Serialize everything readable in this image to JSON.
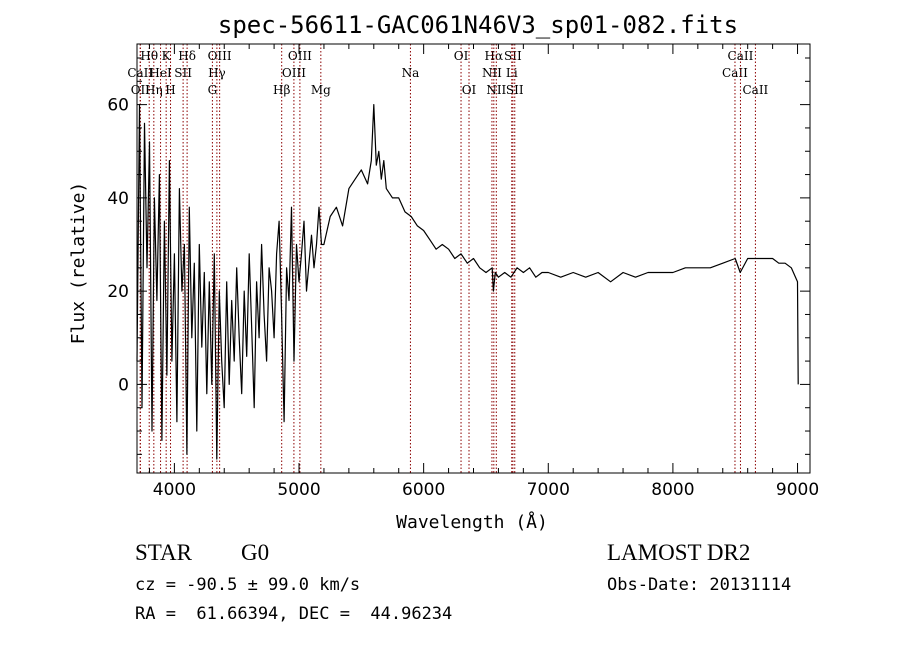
{
  "chart_data": {
    "type": "line",
    "title": "spec-56611-GAC061N46V3_sp01-082.fits",
    "xlabel": "Wavelength (Å)",
    "ylabel": "Flux (relative)",
    "xlim": [
      3700,
      9100
    ],
    "ylim": [
      -19,
      73
    ],
    "xticks": [
      4000,
      5000,
      6000,
      7000,
      8000,
      9000
    ],
    "yticks": [
      0,
      20,
      40,
      60
    ],
    "grid": false,
    "series_color": "#000000",
    "line_color": "#8b0000",
    "series": [
      {
        "x": [
          3700,
          3720,
          3740,
          3760,
          3780,
          3800,
          3820,
          3840,
          3860,
          3880,
          3900,
          3920,
          3940,
          3960,
          3980,
          4000,
          4020,
          4040,
          4060,
          4080,
          4100,
          4120,
          4140,
          4160,
          4180,
          4200,
          4220,
          4240,
          4260,
          4280,
          4300,
          4320,
          4340,
          4360,
          4380,
          4400,
          4420,
          4440,
          4460,
          4480,
          4500,
          4520,
          4540,
          4560,
          4580,
          4600,
          4620,
          4640,
          4660,
          4680,
          4700,
          4720,
          4740,
          4760,
          4780,
          4800,
          4820,
          4840,
          4860,
          4880,
          4900,
          4920,
          4940,
          4960,
          4980,
          5000,
          5020,
          5040,
          5060,
          5080,
          5100,
          5120,
          5140,
          5160,
          5180,
          5200,
          5250,
          5300,
          5350,
          5400,
          5450,
          5500,
          5550,
          5580,
          5600,
          5620,
          5640,
          5660,
          5680,
          5700,
          5750,
          5800,
          5850,
          5900,
          5950,
          6000,
          6050,
          6100,
          6150,
          6200,
          6250,
          6300,
          6350,
          6400,
          6450,
          6500,
          6550,
          6560,
          6575,
          6600,
          6650,
          6700,
          6750,
          6800,
          6850,
          6900,
          6950,
          7000,
          7100,
          7200,
          7300,
          7400,
          7500,
          7600,
          7700,
          7800,
          7900,
          8000,
          8100,
          8200,
          8300,
          8400,
          8500,
          8540,
          8600,
          8650,
          8700,
          8750,
          8800,
          8850,
          8900,
          8950,
          9000,
          9005
        ],
        "y": [
          5,
          60,
          -5,
          56,
          25,
          52,
          -10,
          40,
          18,
          45,
          -12,
          35,
          2,
          48,
          5,
          28,
          -8,
          42,
          20,
          30,
          -15,
          38,
          10,
          26,
          -10,
          30,
          8,
          24,
          -2,
          22,
          0,
          28,
          -16,
          20,
          5,
          -5,
          22,
          0,
          18,
          5,
          25,
          10,
          -2,
          20,
          6,
          28,
          12,
          -5,
          22,
          10,
          30,
          15,
          5,
          25,
          20,
          10,
          28,
          35,
          15,
          -8,
          25,
          18,
          38,
          5,
          30,
          22,
          28,
          35,
          20,
          26,
          32,
          25,
          30,
          38,
          30,
          30,
          36,
          38,
          34,
          42,
          44,
          46,
          43,
          48,
          60,
          47,
          50,
          44,
          48,
          42,
          40,
          40,
          37,
          36,
          34,
          33,
          31,
          29,
          30,
          29,
          27,
          28,
          26,
          27,
          25,
          24,
          25,
          20,
          24,
          23,
          24,
          23,
          25,
          24,
          25,
          23,
          24,
          24,
          23,
          24,
          23,
          24,
          22,
          24,
          23,
          24,
          24,
          24,
          25,
          25,
          25,
          26,
          27,
          24,
          27,
          27,
          27,
          27,
          27,
          26,
          26,
          25,
          22,
          0
        ]
      }
    ],
    "lines": [
      {
        "label": "Hθ",
        "x": 3798,
        "row": 0
      },
      {
        "label": "Hη",
        "x": 3835,
        "row": 2
      },
      {
        "label": "OII",
        "x": 3727,
        "row": 2
      },
      {
        "label": "CaII",
        "x": 3726,
        "row": 1
      },
      {
        "label": "HeI",
        "x": 3889,
        "row": 1
      },
      {
        "label": "K",
        "x": 3934,
        "row": 0
      },
      {
        "label": "H",
        "x": 3969,
        "row": 2
      },
      {
        "label": "SII",
        "x": 4070,
        "row": 1
      },
      {
        "label": "Hδ",
        "x": 4102,
        "row": 0
      },
      {
        "label": "Hγ",
        "x": 4341,
        "row": 1
      },
      {
        "label": "G",
        "x": 4305,
        "row": 2
      },
      {
        "label": "OIII",
        "x": 4363,
        "row": 0
      },
      {
        "label": "Hβ",
        "x": 4861,
        "row": 2
      },
      {
        "label": "OIII",
        "x": 4959,
        "row": 1
      },
      {
        "label": "OIII",
        "x": 5007,
        "row": 0
      },
      {
        "label": "Mg",
        "x": 5175,
        "row": 2
      },
      {
        "label": "Na",
        "x": 5894,
        "row": 1
      },
      {
        "label": "OI",
        "x": 6300,
        "row": 0
      },
      {
        "label": "OI",
        "x": 6364,
        "row": 2
      },
      {
        "label": "Hα",
        "x": 6563,
        "row": 0
      },
      {
        "label": "NII",
        "x": 6548,
        "row": 1
      },
      {
        "label": "NII",
        "x": 6583,
        "row": 2
      },
      {
        "label": "Li",
        "x": 6707,
        "row": 1
      },
      {
        "label": "SII",
        "x": 6716,
        "row": 0
      },
      {
        "label": "SII",
        "x": 6731,
        "row": 2
      },
      {
        "label": "CaII",
        "x": 8498,
        "row": 1
      },
      {
        "label": "CaII",
        "x": 8542,
        "row": 0
      },
      {
        "label": "CaII",
        "x": 8662,
        "row": 2
      }
    ]
  },
  "info": {
    "class_label": "STAR",
    "subclass": "G0",
    "cz": "cz = -90.5 ± 99.0 km/s",
    "coords": "RA =  61.66394, DEC =  44.96234",
    "survey": "LAMOST DR2",
    "obs_date": "Obs-Date: 20131114"
  }
}
